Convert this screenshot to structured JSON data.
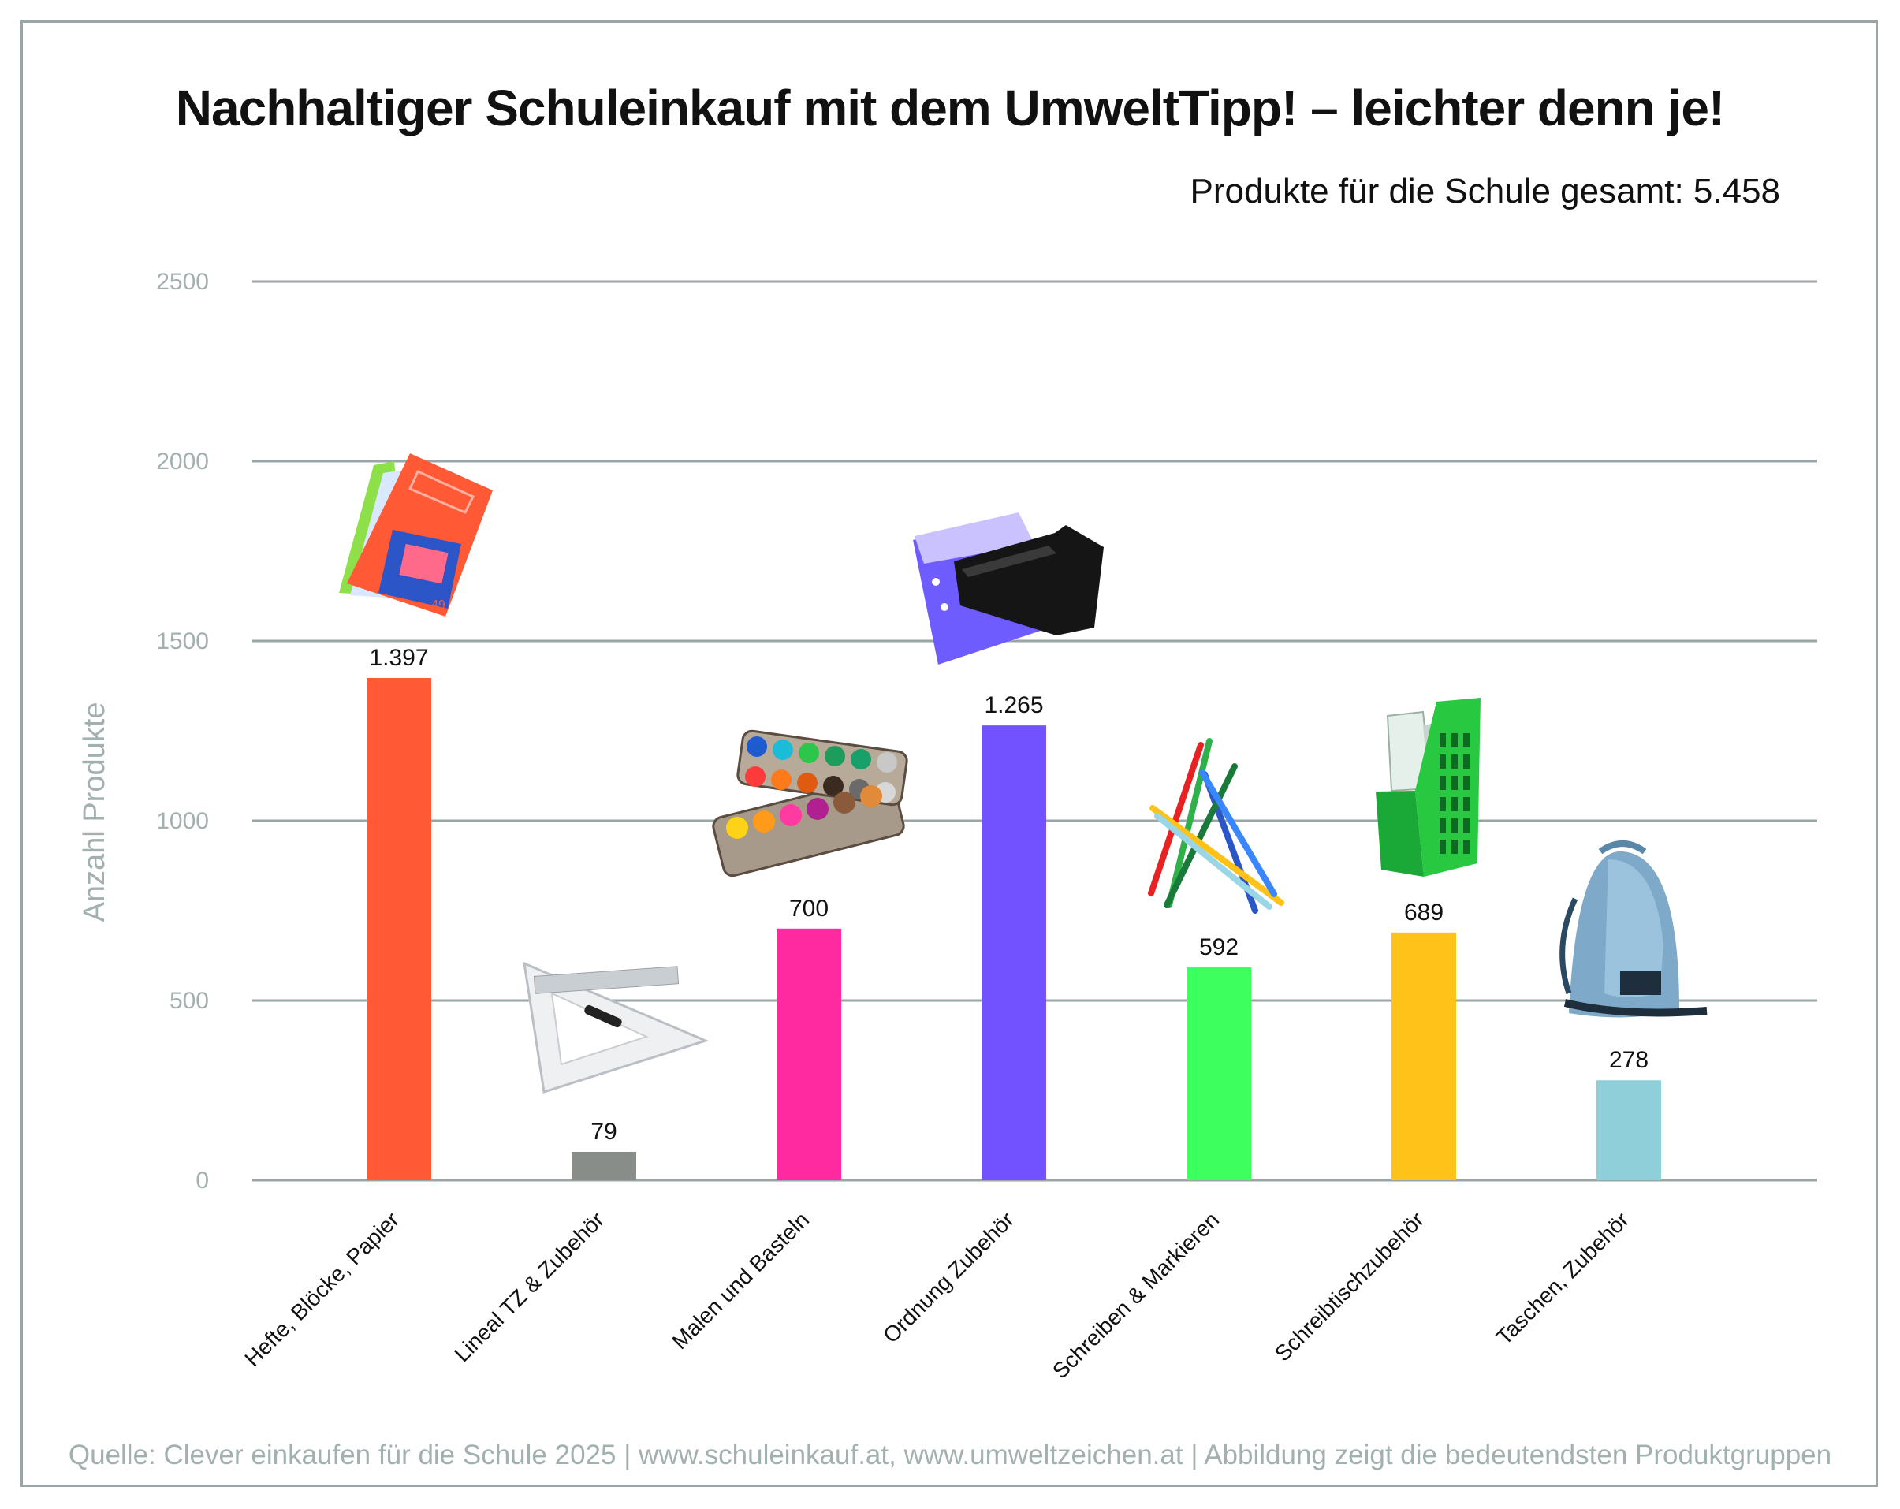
{
  "chart_data": {
    "type": "bar",
    "title": "Nachhaltiger Schuleinkauf mit dem UmweltTipp! – leichter denn je!",
    "subtitle": "Produkte für die Schule gesamt: 5.458",
    "source": "Quelle: Clever einkaufen für die Schule 2025 | www.schuleinkauf.at, www.umweltzeichen.at | Abbildung zeigt die bedeutendsten Produktgruppen",
    "ylabel": "Anzahl Produkte",
    "xlabel": "",
    "ylim": [
      0,
      2500
    ],
    "yticks": [
      0,
      500,
      1000,
      1500,
      2000,
      2500
    ],
    "grid": true,
    "categories": [
      "Hefte, Blöcke, Papier",
      "Lineal TZ & Zubehör",
      "Malen und Basteln",
      "Ordnung Zubehör",
      "Schreiben & Markieren",
      "Schreibtischzubehör",
      "Taschen, Zubehör"
    ],
    "values": [
      1397,
      79,
      700,
      1265,
      592,
      689,
      278
    ],
    "value_labels": [
      "1.397",
      "79",
      "700",
      "1.265",
      "592",
      "689",
      "278"
    ],
    "colors": [
      "#ff5a35",
      "#898d89",
      "#ff2aa0",
      "#7252ff",
      "#3dff5e",
      "#ffc218",
      "#8fcfd9"
    ],
    "icons": [
      "notebooks-icon",
      "ruler-triangle-icon",
      "watercolor-palette-icon",
      "binder-folder-icon",
      "colored-pencils-icon",
      "magazine-holder-icon",
      "backpack-icon"
    ]
  }
}
